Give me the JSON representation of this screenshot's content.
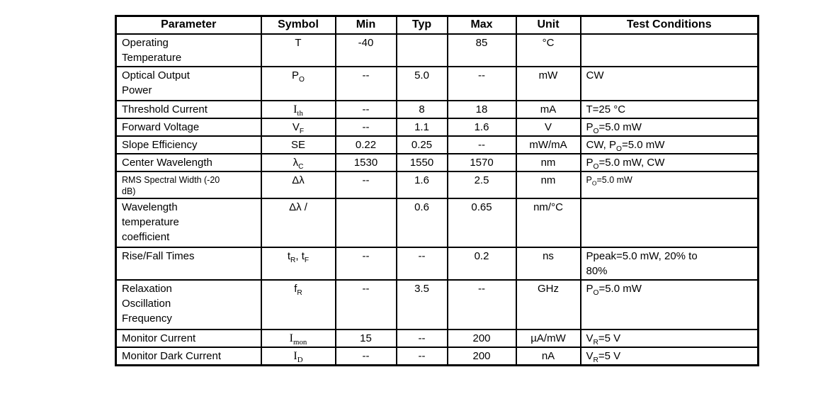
{
  "table": {
    "headers": [
      "Parameter",
      "Symbol",
      "Min",
      "Typ",
      "Max",
      "Unit",
      "Test Conditions"
    ],
    "rows": [
      {
        "parameter": "Operating\nTemperature",
        "symbol": "T",
        "min": "-40",
        "typ": "",
        "max": "85",
        "unit": "°C",
        "test_conditions": ""
      },
      {
        "parameter": "Optical Output\nPower",
        "symbol": "P_(O)",
        "min": "--",
        "typ": "5.0",
        "max": "--",
        "unit": "mW",
        "test_conditions": "CW"
      },
      {
        "parameter": "Threshold Current",
        "symbol": "I_(th)",
        "min": "--",
        "typ": "8",
        "max": "18",
        "unit": "mA",
        "test_conditions": "T=25 °C"
      },
      {
        "parameter": "Forward Voltage",
        "symbol": "V_(F)",
        "min": "--",
        "typ": "1.1",
        "max": "1.6",
        "unit": "V",
        "test_conditions": "P_(O)=5.0 mW"
      },
      {
        "parameter": "Slope Efficiency",
        "symbol": "SE",
        "min": "0.22",
        "typ": "0.25",
        "max": "--",
        "unit": "mW/mA",
        "test_conditions": "CW, P_(O)=5.0 mW"
      },
      {
        "parameter": "Center Wavelength",
        "symbol": "λ_(C)",
        "min": "1530",
        "typ": "1550",
        "max": "1570",
        "unit": "nm",
        "test_conditions": "P_(O)=5.0 mW, CW"
      },
      {
        "parameter": "RMS Spectral Width (-20\ndB)",
        "symbol": "Δλ",
        "min": "--",
        "typ": "1.6",
        "max": "2.5",
        "unit": "nm",
        "test_conditions": "P_(O)=5.0 mW"
      },
      {
        "parameter": "Wavelength\ntemperature\ncoefficient",
        "symbol": "Δλ /",
        "min": "",
        "typ": "0.6",
        "max": "0.65",
        "unit": "nm/°C",
        "test_conditions": ""
      },
      {
        "parameter": "Rise/Fall Times",
        "symbol": "t_(R), t_(F)",
        "min": "--",
        "typ": "--",
        "max": "0.2",
        "unit": "ns",
        "test_conditions": "Ppeak=5.0 mW, 20% to\n80%"
      },
      {
        "parameter": "Relaxation\nOscillation\nFrequency",
        "symbol": "f_(R)",
        "min": "--",
        "typ": "3.5",
        "max": "--",
        "unit": "GHz",
        "test_conditions": "P_(O)=5.0 mW"
      },
      {
        "parameter": "Monitor Current",
        "symbol": "I_(mon)",
        "min": "15",
        "typ": "--",
        "max": "200",
        "unit": "µA/mW",
        "test_conditions": "V_(R)=5 V"
      },
      {
        "parameter": "Monitor Dark Current",
        "symbol": "I_(D)",
        "min": "--",
        "typ": "--",
        "max": "200",
        "unit": "nA",
        "test_conditions": "V_(R)=5 V"
      }
    ]
  }
}
